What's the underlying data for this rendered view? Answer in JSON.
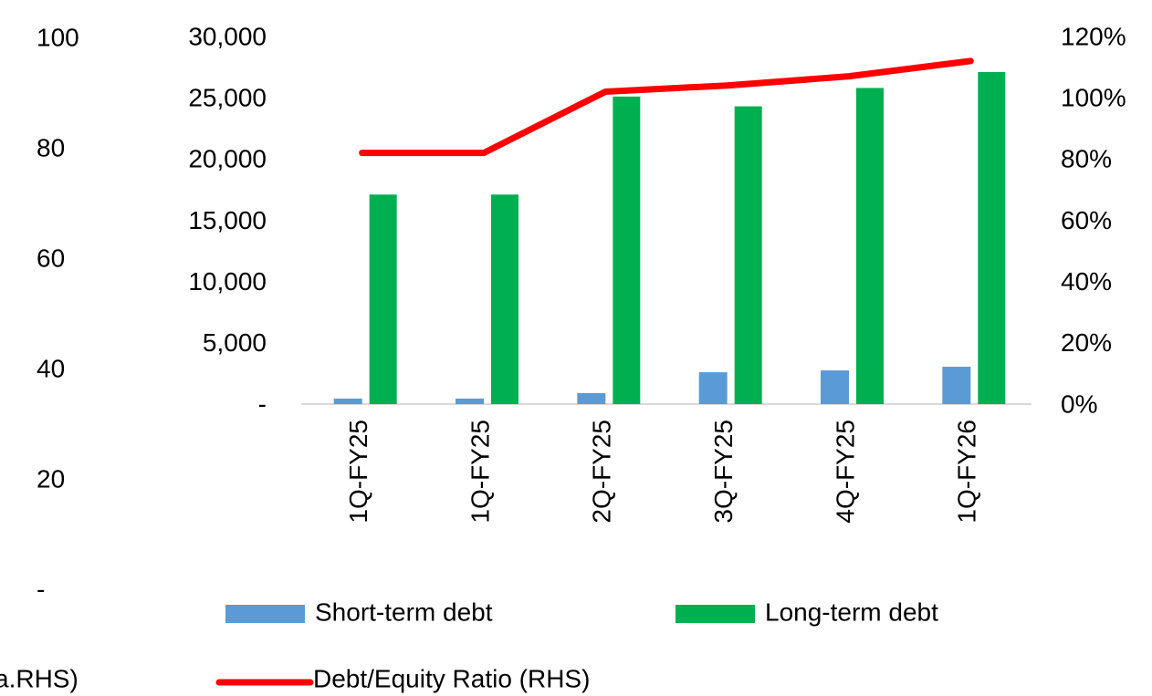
{
  "chart_data": [
    {
      "type": "bar",
      "categories": [
        "1Q-FY25",
        "1Q-FY25",
        "2Q-FY25",
        "3Q-FY25",
        "4Q-FY25",
        "1Q-FY26"
      ],
      "series": [
        {
          "name": "Short-term debt",
          "color": "#5b9bd5",
          "values": [
            450,
            450,
            900,
            2600,
            2750,
            3050
          ]
        },
        {
          "name": "Long-term debt",
          "color": "#00b050",
          "values": [
            17100,
            17100,
            25100,
            24300,
            25800,
            27100
          ]
        },
        {
          "name": "Debt/Equity Ratio (RHS)",
          "color": "#ff0000",
          "type": "line",
          "axis": "y2",
          "values": [
            82,
            82,
            102,
            104,
            107,
            112
          ]
        }
      ],
      "ylim": [
        0,
        30000
      ],
      "yticks": [
        {
          "value": 0,
          "label": "-"
        },
        {
          "value": 5000,
          "label": "5,000"
        },
        {
          "value": 10000,
          "label": "10,000"
        },
        {
          "value": 15000,
          "label": "15,000"
        },
        {
          "value": 20000,
          "label": "20,000"
        },
        {
          "value": 25000,
          "label": "25,000"
        },
        {
          "value": 30000,
          "label": "30,000"
        }
      ],
      "y2lim": [
        0,
        120
      ],
      "y2ticks": [
        {
          "value": 0,
          "label": "0%"
        },
        {
          "value": 20,
          "label": "20%"
        },
        {
          "value": 40,
          "label": "40%"
        },
        {
          "value": 60,
          "label": "60%"
        },
        {
          "value": 80,
          "label": "80%"
        },
        {
          "value": 100,
          "label": "100%"
        },
        {
          "value": 120,
          "label": "120%"
        }
      ]
    },
    {
      "type": "axis",
      "ylim": [
        0,
        100
      ],
      "yticks": [
        {
          "value": 0,
          "label": "-"
        },
        20,
        40,
        60,
        80,
        100
      ],
      "note": "a.RHS)"
    }
  ]
}
